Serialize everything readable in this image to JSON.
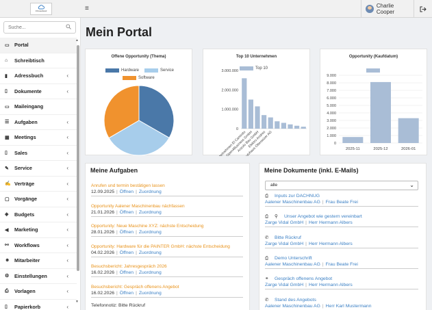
{
  "app": {
    "logo_text": "Ohnweitland",
    "user_name": "Charlie Cooper"
  },
  "sidebar": {
    "search_placeholder": "Suche...",
    "items": [
      {
        "label": "Portal",
        "icon": "laptop-icon",
        "glyph": "▭",
        "active": true,
        "chevron": false
      },
      {
        "label": "Schreibtisch",
        "icon": "desk-icon",
        "glyph": "⌂",
        "chevron": false
      },
      {
        "label": "Adressbuch",
        "icon": "address-book-icon",
        "glyph": "▮",
        "chevron": true
      },
      {
        "label": "Dokumente",
        "icon": "document-icon",
        "glyph": "▯",
        "chevron": true
      },
      {
        "label": "Maileingang",
        "icon": "inbox-icon",
        "glyph": "▭",
        "chevron": false
      },
      {
        "label": "Aufgaben",
        "icon": "tasks-icon",
        "glyph": "☰",
        "chevron": true
      },
      {
        "label": "Meetings",
        "icon": "calendar-icon",
        "glyph": "▦",
        "chevron": true
      },
      {
        "label": "Sales",
        "icon": "sales-icon",
        "glyph": "▯",
        "chevron": true
      },
      {
        "label": "Service",
        "icon": "wrench-icon",
        "glyph": "✎",
        "chevron": true
      },
      {
        "label": "Verträge",
        "icon": "contract-icon",
        "glyph": "✍",
        "chevron": true
      },
      {
        "label": "Vorgänge",
        "icon": "process-icon",
        "glyph": "▢",
        "chevron": true
      },
      {
        "label": "Budgets",
        "icon": "budget-icon",
        "glyph": "◈",
        "chevron": true
      },
      {
        "label": "Marketing",
        "icon": "megaphone-icon",
        "glyph": "◀",
        "chevron": true
      },
      {
        "label": "Workflows",
        "icon": "workflow-icon",
        "glyph": "⚯",
        "chevron": true
      },
      {
        "label": "Mitarbeiter",
        "icon": "employees-icon",
        "glyph": "☻",
        "chevron": true
      },
      {
        "label": "Einstellungen",
        "icon": "gears-icon",
        "glyph": "⚙",
        "chevron": true
      },
      {
        "label": "Vorlagen",
        "icon": "printer-icon",
        "glyph": "⎙",
        "chevron": true
      },
      {
        "label": "Papierkorb",
        "icon": "trash-icon",
        "glyph": "▯",
        "chevron": true
      }
    ]
  },
  "main": {
    "title": "Mein Portal"
  },
  "chart_data": [
    {
      "type": "pie",
      "title": "Offene Opportunity (Thema)",
      "legend_position": "top",
      "labels": [
        "Hardware",
        "Service",
        "Software"
      ],
      "values": [
        33.3,
        33.3,
        33.4
      ],
      "colors": [
        "#4a78a8",
        "#a7cdeb",
        "#f0922e"
      ]
    },
    {
      "type": "bar",
      "title": "Top 10 Unternehmen",
      "legend_position": "top",
      "series": [
        {
          "name": "Top 10",
          "values": [
            2600000,
            1500000,
            1150000,
            700000,
            580000,
            380000,
            300000,
            220000,
            150000,
            100000
          ]
        }
      ],
      "categories": [
        "Abbruchunterlnehmen El Caminito",
        "Open4Business GmbH",
        "Anzolo Bau GmbH",
        "Elektro Andres",
        "Autohaus Ottenwizer AG",
        "",
        "",
        "",
        "",
        ""
      ],
      "yticks": [
        "3.000.000",
        "2.000.000",
        "1.000.000",
        "0"
      ],
      "ylim": [
        0,
        3000000
      ],
      "color": "#a9bdd6"
    },
    {
      "type": "bar",
      "title": "Opportunity (Kaufdatum)",
      "legend_position": "top",
      "categories": [
        "2025-11",
        "2025-12",
        "2026-01"
      ],
      "values": [
        800,
        8100,
        3300
      ],
      "yticks": [
        "9.000",
        "8.000",
        "7.000",
        "6.000",
        "5.000",
        "4.000",
        "3.000",
        "2.000",
        "1.000",
        "0"
      ],
      "ylim": [
        0,
        9000
      ],
      "grid": true,
      "color": "#a9bdd6"
    }
  ],
  "tasks": {
    "title": "Meine Aufgaben",
    "open_label": "Öffnen",
    "assign_label": "Zuordnung",
    "items": [
      {
        "title": "Anrufen und termin bestätigen lassen",
        "date": "12.09.2025"
      },
      {
        "title": "Opportunity Aalener Maschinenbau nächfassen",
        "date": "21.01.2026"
      },
      {
        "title": "Opportunity: Neue Maschine XYZ: nächste Entscheidung",
        "date": "28.01.2026"
      },
      {
        "title": "Opportunity: Hardware für die PAINTER GmbH: nächste Entscheidung",
        "date": "04.02.2026"
      },
      {
        "title": "Besuchsbericht: Jahresgespräch 2026",
        "date": "16.02.2026"
      },
      {
        "title": "Besuchsbericht: Gespräch offenens Angebot",
        "date": "16.02.2026"
      }
    ],
    "trailing_note": "Telefonnotiz: Bitte Rückruf"
  },
  "documents": {
    "title": "Meine Dokumente (inkl. E-Mails)",
    "filter_value": "alle",
    "items": [
      {
        "icons": [
          "printer-icon"
        ],
        "glyphs": [
          "⎙"
        ],
        "title": "Inputs zur DACHNUG",
        "company": "Aalener Maschinenbau AG",
        "person": "Frau Beate Frei"
      },
      {
        "icons": [
          "printer-icon",
          "paperclip-icon"
        ],
        "glyphs": [
          "⎙",
          "⚲"
        ],
        "title": "Unser Angebot wie gestern vereinbart",
        "company": "Zarge Vidal GmbH",
        "person": "Herr Hermann Albers"
      },
      {
        "icons": [
          "phone-icon"
        ],
        "glyphs": [
          "✆"
        ],
        "title": "Bitte Rückruf",
        "company": "Zarge Vidal GmbH",
        "person": "Herr Hermann Albers"
      },
      {
        "icons": [
          "printer-icon"
        ],
        "glyphs": [
          "⎙"
        ],
        "title": "Demo Unterschrift",
        "company": "Aalener Maschinenbau AG",
        "person": "Frau Beate Frei"
      },
      {
        "icons": [
          "handshake-icon"
        ],
        "glyphs": [
          "⚭"
        ],
        "title": "Gespräch offenens Angebot",
        "company": "Zarge Vidal GmbH",
        "person": "Herr Hermann Albers"
      },
      {
        "icons": [
          "phone-icon"
        ],
        "glyphs": [
          "✆"
        ],
        "title": "Stand des Angebots",
        "company": "Aalener Maschinenbau AG",
        "person": "Herr Karl Mustermann"
      }
    ]
  }
}
